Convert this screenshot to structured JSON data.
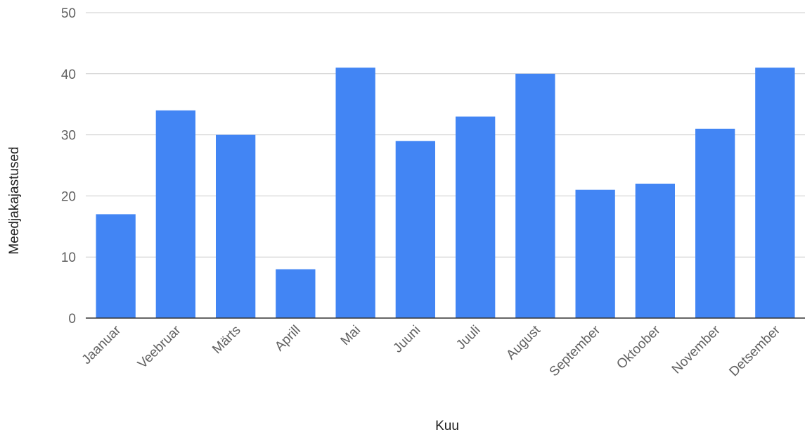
{
  "chart_data": {
    "type": "bar",
    "title": "",
    "xlabel": "Kuu",
    "ylabel": "Meedjakajastused",
    "categories": [
      "Jaanuar",
      "Veebruar",
      "Märts",
      "Aprill",
      "Mai",
      "Juuni",
      "Juuli",
      "August",
      "September",
      "Oktoober",
      "November",
      "Detsember"
    ],
    "series": [
      {
        "values": [
          17,
          34,
          30,
          8,
          41,
          29,
          33,
          40,
          21,
          22,
          31,
          41
        ],
        "color": "#4285f4"
      }
    ],
    "ylim": [
      0,
      50
    ],
    "yticks": [
      0,
      10,
      20,
      30,
      40,
      50
    ],
    "grid": true,
    "legend": "none"
  }
}
